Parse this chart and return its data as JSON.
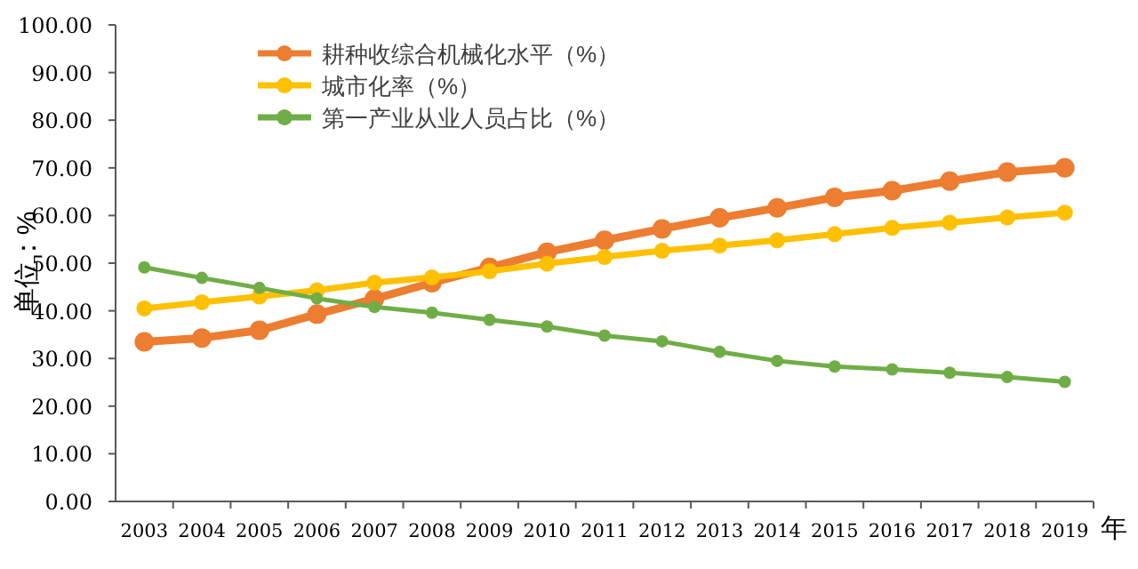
{
  "chart_data": {
    "type": "line",
    "xlabel": "年",
    "ylabel": "单位：%",
    "categories": [
      "2003",
      "2004",
      "2005",
      "2006",
      "2007",
      "2008",
      "2009",
      "2010",
      "2011",
      "2012",
      "2013",
      "2014",
      "2015",
      "2016",
      "2017",
      "2018",
      "2019"
    ],
    "series": [
      {
        "name": "耕种收综合机械化水平（%）",
        "color": "#ed7d31",
        "values": [
          33.5,
          34.3,
          35.9,
          39.3,
          42.5,
          45.9,
          49.1,
          52.3,
          54.8,
          57.2,
          59.5,
          61.6,
          63.8,
          65.2,
          67.2,
          69.1,
          70.0
        ]
      },
      {
        "name": "城市化率（%）",
        "color": "#ffc000",
        "values": [
          40.5,
          41.8,
          43.0,
          44.3,
          45.9,
          47.0,
          48.3,
          49.9,
          51.3,
          52.6,
          53.7,
          54.8,
          56.1,
          57.4,
          58.5,
          59.6,
          60.6
        ]
      },
      {
        "name": "第一产业从业人员占比（%）",
        "color": "#70ad47",
        "values": [
          49.1,
          46.9,
          44.8,
          42.6,
          40.8,
          39.6,
          38.1,
          36.7,
          34.8,
          33.6,
          31.4,
          29.5,
          28.3,
          27.7,
          27.0,
          26.1,
          25.1
        ]
      }
    ],
    "ylim": [
      0,
      100
    ],
    "yticks": [
      {
        "value": 0,
        "label": "0.00"
      },
      {
        "value": 10,
        "label": "10.00"
      },
      {
        "value": 20,
        "label": "20.00"
      },
      {
        "value": 30,
        "label": "30.00"
      },
      {
        "value": 40,
        "label": "40.00"
      },
      {
        "value": 50,
        "label": "50.00"
      },
      {
        "value": 60,
        "label": "60.00"
      },
      {
        "value": 70,
        "label": "70.00"
      },
      {
        "value": 80,
        "label": "80.00"
      },
      {
        "value": 90,
        "label": "90.00"
      },
      {
        "value": 100,
        "label": "100.00"
      }
    ],
    "grid": false,
    "legend": "top left",
    "marker": "circle",
    "line_style": "solid"
  }
}
